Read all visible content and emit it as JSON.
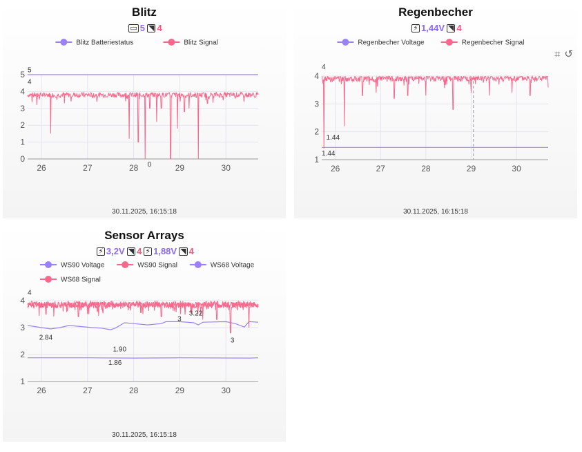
{
  "cards": [
    {
      "title": "Blitz",
      "status": [
        {
          "icon": "battery-icon",
          "glyph": "▭",
          "value": "5",
          "kind": "volt"
        },
        {
          "icon": "signal-icon",
          "glyph": "◥",
          "value": "4",
          "kind": "sig"
        }
      ],
      "timestamp": "30.11.2025, 16:15:18"
    },
    {
      "title": "Regenbecher",
      "status": [
        {
          "icon": "charging-battery-icon",
          "glyph": "⚡",
          "value": "1,44V",
          "kind": "volt"
        },
        {
          "icon": "signal-icon",
          "glyph": "◥",
          "value": "4",
          "kind": "sig"
        }
      ],
      "timestamp": "30.11.2025, 16:15:18",
      "toolbox": [
        {
          "name": "zoom-area-icon",
          "glyph": "⌗"
        },
        {
          "name": "restore-icon",
          "glyph": "↺"
        }
      ]
    },
    {
      "title": "Sensor Arrays",
      "status": [
        {
          "icon": "charging-battery-icon",
          "glyph": "⚡",
          "value": "3,2V",
          "kind": "volt"
        },
        {
          "icon": "signal-icon",
          "glyph": "◥",
          "value": "4",
          "kind": "sig"
        },
        {
          "icon": "charging-battery-icon",
          "glyph": "⚡",
          "value": "1,88V",
          "kind": "volt"
        },
        {
          "icon": "signal-icon",
          "glyph": "◥",
          "value": "4",
          "kind": "sig"
        }
      ],
      "timestamp": "30.11.2025, 16:15:18"
    }
  ],
  "colors": {
    "volt": "#9b82f3",
    "sig": "#f7688c",
    "grid": "#e4e4ee",
    "axis": "#999999"
  },
  "chart_data": [
    {
      "type": "line",
      "title": "Blitz",
      "xlim": [
        25.7,
        30.7
      ],
      "ylim": [
        0,
        5
      ],
      "xticks": [
        "26",
        "27",
        "28",
        "29",
        "30"
      ],
      "yticks": [
        "0",
        "1",
        "2",
        "3",
        "4",
        "5"
      ],
      "legend": "top-center",
      "series": [
        {
          "name": "Blitz Batteriestatus",
          "color": "#9b82f3",
          "gen": "flat",
          "base": 5,
          "noise": 0,
          "dips": [],
          "drift": []
        },
        {
          "name": "Blitz Signal",
          "color": "#f7688c",
          "gen": "noisy",
          "base": 3.8,
          "noise": 0.15,
          "seed": 7,
          "dips": [
            [
              25.9,
              3.2
            ],
            [
              26.2,
              1.5
            ],
            [
              26.5,
              3.3
            ],
            [
              27.2,
              3.4
            ],
            [
              27.9,
              1.2
            ],
            [
              28.1,
              1.0
            ],
            [
              28.25,
              0
            ],
            [
              28.35,
              3.0
            ],
            [
              28.5,
              2.2
            ],
            [
              28.6,
              3.0
            ],
            [
              28.8,
              0
            ],
            [
              28.95,
              1.8
            ],
            [
              29.1,
              2.8
            ],
            [
              29.2,
              3.0
            ],
            [
              29.4,
              0
            ],
            [
              29.6,
              3.3
            ]
          ]
        }
      ],
      "labels": [
        {
          "text": "5",
          "x": 25.7,
          "y": 5.15,
          "color": "#333"
        },
        {
          "text": "4",
          "x": 25.7,
          "y": 4.45,
          "color": "#333"
        },
        {
          "text": "0",
          "x": 28.3,
          "y": -0.45,
          "color": "#333"
        }
      ]
    },
    {
      "type": "line",
      "title": "Regenbecher",
      "xlim": [
        25.7,
        30.7
      ],
      "ylim": [
        1,
        4
      ],
      "xticks": [
        "26",
        "27",
        "28",
        "29",
        "30"
      ],
      "yticks": [
        "1",
        "2",
        "3",
        "4"
      ],
      "legend": "top-center",
      "markline_x": 29.05,
      "series": [
        {
          "name": "Regenbecher Voltage",
          "color": "#9b82f3",
          "gen": "flat",
          "base": 1.44,
          "noise": 0,
          "dips": [],
          "drift": []
        },
        {
          "name": "Regenbecher Signal",
          "color": "#f7688c",
          "gen": "noisy",
          "base": 3.92,
          "noise": 0.12,
          "seed": 13,
          "dips": [
            [
              25.75,
              1.4
            ],
            [
              26.2,
              2.2
            ],
            [
              26.6,
              3.3
            ],
            [
              26.9,
              3.4
            ],
            [
              27.3,
              3.2
            ],
            [
              27.6,
              3.3
            ],
            [
              28.0,
              3.3
            ],
            [
              28.6,
              2.8
            ],
            [
              29.0,
              3.4
            ],
            [
              29.4,
              3.3
            ],
            [
              29.9,
              3.4
            ],
            [
              30.3,
              3.3
            ]
          ]
        }
      ],
      "labels": [
        {
          "text": "4",
          "x": 25.7,
          "y": 4.25,
          "color": "#333"
        },
        {
          "text": "1.44",
          "x": 25.8,
          "y": 1.72,
          "color": "#333"
        },
        {
          "text": "1.44",
          "x": 25.7,
          "y": 1.15,
          "color": "#333"
        }
      ]
    },
    {
      "type": "line",
      "title": "Sensor Arrays",
      "xlim": [
        25.7,
        30.7
      ],
      "ylim": [
        1,
        4
      ],
      "xticks": [
        "26",
        "27",
        "28",
        "29",
        "30"
      ],
      "yticks": [
        "1",
        "2",
        "3",
        "4"
      ],
      "legend": "top-center",
      "series": [
        {
          "name": "WS90 Voltage",
          "color": "#9b82f3",
          "gen": "drift",
          "drift": [
            [
              25.7,
              3.08
            ],
            [
              26.0,
              3.0
            ],
            [
              26.2,
              2.95
            ],
            [
              26.4,
              3.0
            ],
            [
              26.6,
              3.08
            ],
            [
              26.8,
              3.05
            ],
            [
              27.1,
              3.0
            ],
            [
              27.3,
              2.98
            ],
            [
              27.5,
              2.92
            ],
            [
              27.6,
              2.98
            ],
            [
              27.8,
              3.18
            ],
            [
              28.0,
              3.15
            ],
            [
              28.3,
              3.1
            ],
            [
              28.6,
              3.15
            ],
            [
              28.7,
              3.22
            ],
            [
              29.0,
              3.22
            ],
            [
              29.3,
              3.18
            ],
            [
              29.4,
              3.1
            ],
            [
              29.5,
              3.2
            ],
            [
              30.0,
              3.22
            ],
            [
              30.2,
              3.15
            ],
            [
              30.4,
              3.02
            ],
            [
              30.5,
              3.22
            ],
            [
              30.7,
              3.2
            ]
          ]
        },
        {
          "name": "WS90 Signal",
          "color": "#f7688c",
          "gen": "noisy",
          "base": 3.85,
          "noise": 0.13,
          "seed": 21,
          "dips": [
            [
              26.1,
              3.5
            ],
            [
              27.0,
              3.5
            ],
            [
              28.2,
              3.5
            ],
            [
              29.5,
              3.3
            ],
            [
              30.1,
              2.8
            ],
            [
              30.5,
              3.0
            ]
          ]
        },
        {
          "name": "WS68 Voltage",
          "color": "#9b82f3",
          "gen": "drift",
          "drift": [
            [
              25.7,
              1.88
            ],
            [
              27.0,
              1.88
            ],
            [
              28.0,
              1.87
            ],
            [
              29.0,
              1.88
            ],
            [
              30.5,
              1.87
            ],
            [
              30.7,
              1.88
            ]
          ]
        },
        {
          "name": "WS68 Signal",
          "color": "#f7688c",
          "gen": "noisy",
          "base": 3.85,
          "noise": 0.1,
          "seed": 33,
          "dips": [
            [
              26.8,
              3.4
            ],
            [
              28.6,
              3.4
            ],
            [
              29.8,
              3.3
            ]
          ]
        }
      ],
      "labels": [
        {
          "text": "4",
          "x": 25.7,
          "y": 4.22,
          "color": "#333"
        },
        {
          "text": "2.84",
          "x": 25.95,
          "y": 2.55,
          "color": "#333"
        },
        {
          "text": "3.22",
          "x": 29.2,
          "y": 3.45,
          "color": "#333"
        },
        {
          "text": "3",
          "x": 28.95,
          "y": 3.25,
          "color": "#333"
        },
        {
          "text": "3",
          "x": 30.1,
          "y": 2.45,
          "color": "#333"
        },
        {
          "text": "1.90",
          "x": 27.55,
          "y": 2.12,
          "color": "#333"
        },
        {
          "text": "1.86",
          "x": 27.45,
          "y": 1.62,
          "color": "#333"
        }
      ]
    }
  ]
}
